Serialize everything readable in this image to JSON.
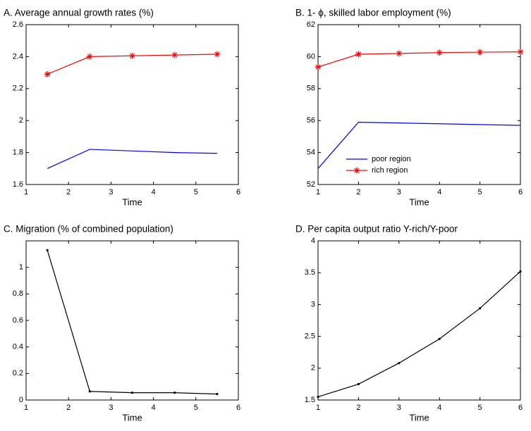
{
  "chart_data": [
    {
      "type": "line",
      "title": "A. Average annual growth rates (%)",
      "x_label": "Time",
      "x": [
        1.5,
        2.5,
        3.5,
        4.5,
        5.5
      ],
      "series": [
        {
          "color": "#0000ff",
          "marker": "none",
          "values": [
            1.7,
            1.82,
            1.81,
            1.8,
            1.795
          ]
        },
        {
          "color": "#ff0000",
          "marker": "star",
          "values": [
            2.29,
            2.4,
            2.405,
            2.41,
            2.415
          ]
        }
      ],
      "xlim": [
        1,
        6
      ],
      "xticks": [
        1,
        2,
        3,
        4,
        5,
        6
      ],
      "ylim": [
        1.6,
        2.6
      ],
      "yticks": [
        1.6,
        1.8,
        2,
        2.2,
        2.4,
        2.6
      ]
    },
    {
      "type": "line",
      "title": "B. 1- ϕ, skilled labor employment (%)",
      "x_label": "Time",
      "x": [
        1,
        2,
        3,
        4,
        5,
        6
      ],
      "series": [
        {
          "name": "poor region",
          "color": "#0000ff",
          "marker": "none",
          "values": [
            53.0,
            55.9,
            55.85,
            55.8,
            55.75,
            55.7
          ]
        },
        {
          "name": "rich region",
          "color": "#ff0000",
          "marker": "star",
          "values": [
            59.35,
            60.15,
            60.2,
            60.25,
            60.28,
            60.3
          ]
        }
      ],
      "legend": "lower left",
      "xlim": [
        1,
        6
      ],
      "xticks": [
        1,
        2,
        3,
        4,
        5,
        6
      ],
      "ylim": [
        52,
        62
      ],
      "yticks": [
        52,
        54,
        56,
        58,
        60,
        62
      ]
    },
    {
      "type": "line",
      "title": "C. Migration (% of combined population)",
      "x_label": "Time",
      "x": [
        1.5,
        2.5,
        3.5,
        4.5,
        5.5
      ],
      "series": [
        {
          "color": "#000000",
          "marker": "dot",
          "values": [
            1.13,
            0.065,
            0.055,
            0.055,
            0.045
          ]
        }
      ],
      "xlim": [
        1,
        6
      ],
      "xticks": [
        1,
        2,
        3,
        4,
        5,
        6
      ],
      "ylim": [
        0,
        1.2
      ],
      "yticks": [
        0,
        0.2,
        0.4,
        0.6,
        0.8,
        1
      ]
    },
    {
      "type": "line",
      "title": "D. Per capita output ratio Y-rich/Y-poor",
      "x_label": "Time",
      "x": [
        1,
        2,
        3,
        4,
        5,
        6
      ],
      "series": [
        {
          "color": "#000000",
          "marker": "dot",
          "values": [
            1.55,
            1.75,
            2.08,
            2.46,
            2.94,
            3.52
          ]
        }
      ],
      "xlim": [
        1,
        6
      ],
      "xticks": [
        1,
        2,
        3,
        4,
        5,
        6
      ],
      "ylim": [
        1.5,
        4
      ],
      "yticks": [
        1.5,
        2,
        2.5,
        3,
        3.5,
        4
      ]
    }
  ]
}
